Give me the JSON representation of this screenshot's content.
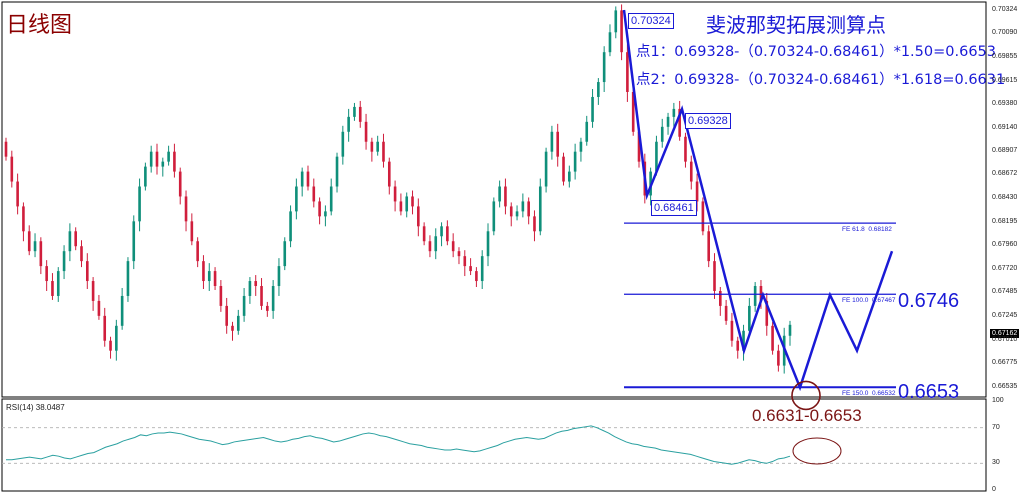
{
  "page": {
    "title": "日线图",
    "fib_title": "斐波那契拓展测算点",
    "fib_line1": "点1：0.69328-（0.70324-0.68461）*1.50=0.6653",
    "fib_line2": "点2：0.69328-（0.70324-0.68461）*1.618=0.6631",
    "target_label": "0.6631-0.6653",
    "level_label_1": "0.6746",
    "level_label_2": "0.6653",
    "rsi_label": "RSI(14) 38.0487",
    "current_price": "0.67162"
  },
  "colors": {
    "bull": "#0f8f7a",
    "bear": "#d01e3c",
    "annotation": "#1a1ad6",
    "target": "#7b1515",
    "rsi_line": "#2aa0a0"
  },
  "chart_data": [
    {
      "type": "candlestick",
      "title": "日线图",
      "ylim": [
        0.66535,
        0.70324
      ],
      "y_ticks": [
        "0.70324",
        "0.70090",
        "0.69855",
        "0.69615",
        "0.69380",
        "0.69140",
        "0.68907",
        "0.68672",
        "0.68430",
        "0.68195",
        "0.67960",
        "0.67720",
        "0.67485",
        "0.67245",
        "0.67010",
        "0.66775",
        "0.66535"
      ],
      "swing_points": [
        {
          "name": "0.70324",
          "value": 0.70324
        },
        {
          "name": "0.68461",
          "value": 0.68461
        },
        {
          "name": "0.69328",
          "value": 0.69328
        }
      ],
      "fibonacci_expansion": [
        {
          "label": "FE 61.8",
          "value": 0.68182
        },
        {
          "label": "FE 100.0",
          "value": 0.67467
        },
        {
          "label": "FE 150.0",
          "value": 0.66532
        }
      ],
      "closes": [
        0.6885,
        0.686,
        0.6835,
        0.681,
        0.679,
        0.68,
        0.6775,
        0.676,
        0.6745,
        0.677,
        0.679,
        0.681,
        0.6795,
        0.678,
        0.676,
        0.674,
        0.6725,
        0.67,
        0.669,
        0.6715,
        0.6745,
        0.678,
        0.682,
        0.6855,
        0.6875,
        0.689,
        0.6875,
        0.688,
        0.689,
        0.687,
        0.6845,
        0.682,
        0.68,
        0.678,
        0.676,
        0.677,
        0.6755,
        0.6735,
        0.6715,
        0.671,
        0.6725,
        0.6745,
        0.676,
        0.6755,
        0.6735,
        0.673,
        0.6755,
        0.6775,
        0.68,
        0.683,
        0.6855,
        0.687,
        0.6855,
        0.684,
        0.6825,
        0.683,
        0.6855,
        0.6885,
        0.691,
        0.6925,
        0.6935,
        0.692,
        0.69,
        0.689,
        0.69,
        0.688,
        0.6855,
        0.684,
        0.683,
        0.6845,
        0.6835,
        0.6815,
        0.68,
        0.679,
        0.6805,
        0.6815,
        0.68,
        0.679,
        0.6785,
        0.6775,
        0.677,
        0.676,
        0.6785,
        0.681,
        0.684,
        0.6855,
        0.6835,
        0.6825,
        0.683,
        0.684,
        0.6825,
        0.681,
        0.6855,
        0.689,
        0.691,
        0.6885,
        0.686,
        0.687,
        0.689,
        0.69,
        0.692,
        0.6945,
        0.696,
        0.699,
        0.701,
        0.7032,
        0.699,
        0.695,
        0.691,
        0.688,
        0.6846,
        0.687,
        0.69,
        0.6915,
        0.6925,
        0.6933,
        0.6905,
        0.688,
        0.686,
        0.684,
        0.681,
        0.678,
        0.675,
        0.6735,
        0.672,
        0.67,
        0.669,
        0.671,
        0.6735,
        0.6755,
        0.674,
        0.6715,
        0.669,
        0.6675,
        0.6705,
        0.6716
      ],
      "projection": [
        0.6746,
        0.6653,
        0.6746,
        0.669,
        0.679
      ],
      "target_range": "0.6631-0.6653"
    },
    {
      "type": "line",
      "name": "RSI(14)",
      "value_label": "38.0487",
      "ylim": [
        0,
        100
      ],
      "y_ticks": [
        100,
        70,
        30,
        0
      ],
      "levels": [
        70,
        30
      ],
      "values": [
        34,
        34,
        35,
        36,
        37,
        36,
        35,
        37,
        39,
        38,
        36,
        35,
        37,
        39,
        41,
        42,
        45,
        48,
        50,
        52,
        55,
        57,
        59,
        62,
        61,
        63,
        64,
        64,
        65,
        64,
        63,
        61,
        59,
        57,
        56,
        55,
        53,
        51,
        52,
        54,
        55,
        56,
        57,
        58,
        59,
        57,
        55,
        54,
        55,
        57,
        58,
        60,
        61,
        59,
        58,
        56,
        54,
        55,
        57,
        59,
        61,
        63,
        64,
        63,
        61,
        60,
        58,
        56,
        54,
        52,
        51,
        50,
        48,
        47,
        46,
        45,
        45,
        46,
        45,
        44,
        43,
        44,
        46,
        48,
        50,
        53,
        55,
        57,
        58,
        59,
        58,
        57,
        58,
        61,
        64,
        66,
        67,
        69,
        70,
        71,
        72,
        70,
        67,
        64,
        60,
        57,
        54,
        52,
        51,
        49,
        48,
        47,
        45,
        44,
        43,
        42,
        41,
        40,
        38,
        36,
        34,
        32,
        31,
        30,
        29,
        30,
        32,
        34,
        33,
        31,
        30,
        32,
        35,
        36,
        38
      ]
    }
  ]
}
